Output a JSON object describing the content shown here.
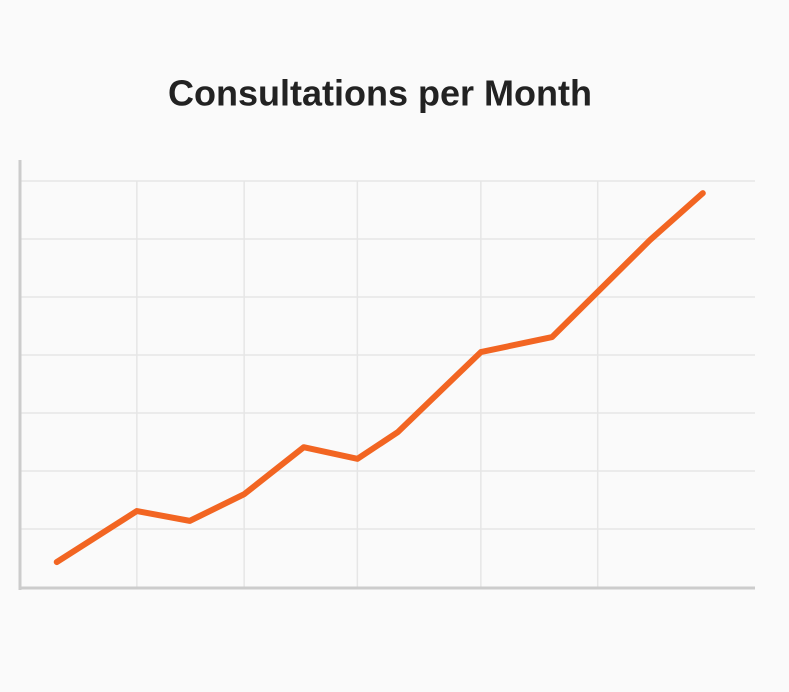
{
  "chart_data": {
    "type": "line",
    "title": "Consultations per Month",
    "x": [
      5.0,
      15.9,
      23.1,
      30.5,
      38.6,
      45.9,
      51.4,
      62.7,
      72.4,
      85.7,
      92.9
    ],
    "series": [
      {
        "color": "#f26522",
        "values": [
          0.43,
          1.31,
          1.14,
          1.6,
          2.41,
          2.21,
          2.67,
          4.05,
          4.31,
          5.98,
          6.79
        ]
      }
    ],
    "xlim": [
      0,
      100
    ],
    "xticks": [
      15.9,
      30.5,
      45.9,
      62.7,
      78.6
    ],
    "ylim": [
      0,
      7
    ],
    "yticks": [
      1,
      2,
      3,
      4,
      5,
      6,
      7
    ],
    "grid": true,
    "tick_labels": false
  }
}
